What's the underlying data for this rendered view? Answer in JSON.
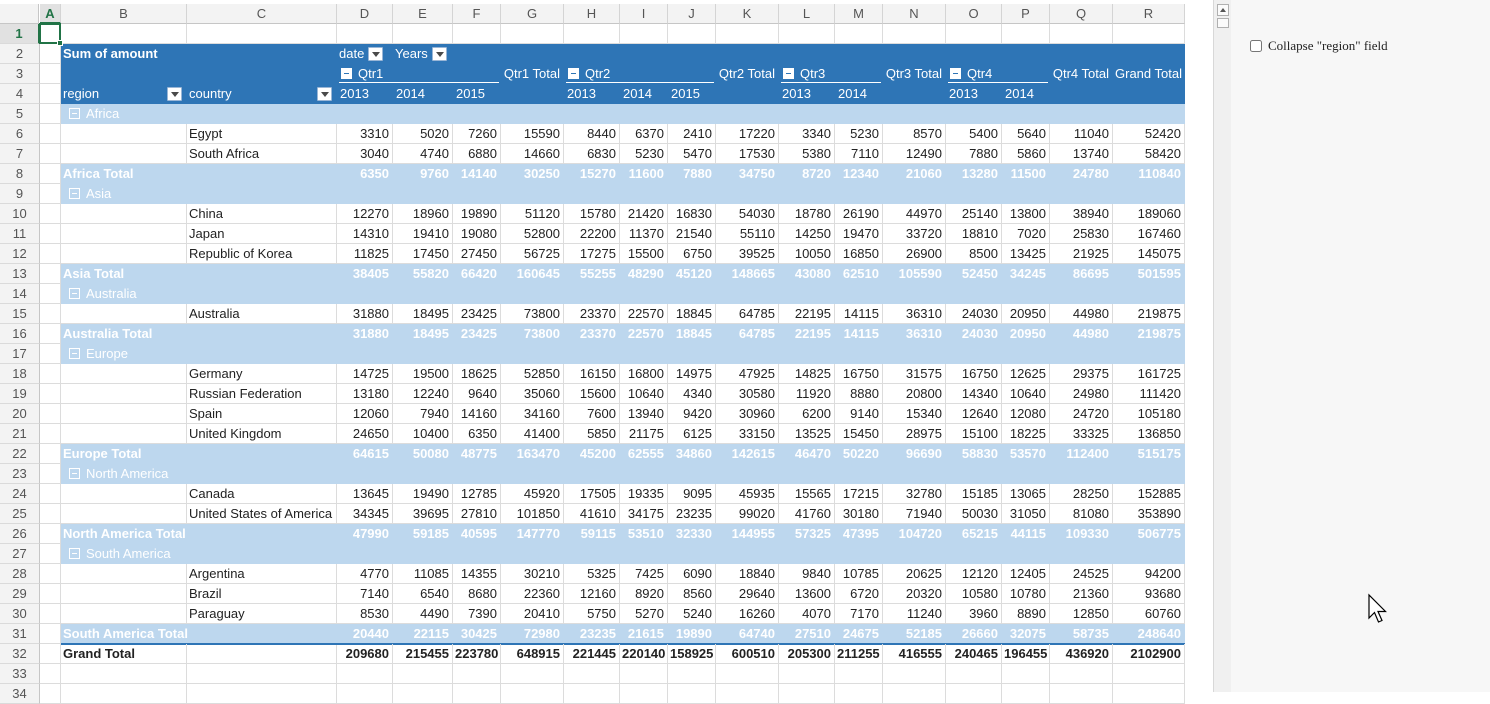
{
  "columns": [
    "A",
    "B",
    "C",
    "D",
    "E",
    "F",
    "G",
    "H",
    "I",
    "J",
    "K",
    "L",
    "M",
    "N",
    "O",
    "P",
    "Q",
    "R"
  ],
  "selected_column": "A",
  "selected_row": "1",
  "rows": [
    "1",
    "2",
    "3",
    "4",
    "5",
    "6",
    "7",
    "8",
    "9",
    "10",
    "11",
    "12",
    "13",
    "14",
    "15",
    "16",
    "17",
    "18",
    "19",
    "20",
    "21",
    "22",
    "23",
    "24",
    "25",
    "26",
    "27",
    "28",
    "29",
    "30",
    "31",
    "32",
    "33",
    "34"
  ],
  "pivot": {
    "data_field": "Sum of amount",
    "col_field_date": "date",
    "col_field_years": "Years",
    "row_field_region": "region",
    "row_field_country": "country",
    "quarters": [
      "Qtr1",
      "Qtr2",
      "Qtr3",
      "Qtr4"
    ],
    "quarter_totals": [
      "Qtr1 Total",
      "Qtr2 Total",
      "Qtr3 Total",
      "Qtr4 Total"
    ],
    "grand_total_label": "Grand Total",
    "years": {
      "D": "2013",
      "E": "2014",
      "F": "2015",
      "H": "2013",
      "I": "2014",
      "J": "2015",
      "L": "2013",
      "M": "2014",
      "O": "2013",
      "P": "2014"
    },
    "regions": [
      {
        "name": "Africa",
        "total_label": "Africa Total",
        "countries": [
          {
            "name": "Egypt",
            "values": [
              "3310",
              "5020",
              "7260",
              "15590",
              "8440",
              "6370",
              "2410",
              "17220",
              "3340",
              "5230",
              "8570",
              "5400",
              "5640",
              "11040",
              "52420"
            ]
          },
          {
            "name": "South Africa",
            "values": [
              "3040",
              "4740",
              "6880",
              "14660",
              "6830",
              "5230",
              "5470",
              "17530",
              "5380",
              "7110",
              "12490",
              "7880",
              "5860",
              "13740",
              "58420"
            ]
          }
        ],
        "totals": [
          "6350",
          "9760",
          "14140",
          "30250",
          "15270",
          "11600",
          "7880",
          "34750",
          "8720",
          "12340",
          "21060",
          "13280",
          "11500",
          "24780",
          "110840"
        ]
      },
      {
        "name": "Asia",
        "total_label": "Asia Total",
        "countries": [
          {
            "name": "China",
            "values": [
              "12270",
              "18960",
              "19890",
              "51120",
              "15780",
              "21420",
              "16830",
              "54030",
              "18780",
              "26190",
              "44970",
              "25140",
              "13800",
              "38940",
              "189060"
            ]
          },
          {
            "name": "Japan",
            "values": [
              "14310",
              "19410",
              "19080",
              "52800",
              "22200",
              "11370",
              "21540",
              "55110",
              "14250",
              "19470",
              "33720",
              "18810",
              "7020",
              "25830",
              "167460"
            ]
          },
          {
            "name": "Republic of Korea",
            "values": [
              "11825",
              "17450",
              "27450",
              "56725",
              "17275",
              "15500",
              "6750",
              "39525",
              "10050",
              "16850",
              "26900",
              "8500",
              "13425",
              "21925",
              "145075"
            ]
          }
        ],
        "totals": [
          "38405",
          "55820",
          "66420",
          "160645",
          "55255",
          "48290",
          "45120",
          "148665",
          "43080",
          "62510",
          "105590",
          "52450",
          "34245",
          "86695",
          "501595"
        ]
      },
      {
        "name": "Australia",
        "total_label": "Australia Total",
        "countries": [
          {
            "name": "Australia",
            "values": [
              "31880",
              "18495",
              "23425",
              "73800",
              "23370",
              "22570",
              "18845",
              "64785",
              "22195",
              "14115",
              "36310",
              "24030",
              "20950",
              "44980",
              "219875"
            ]
          }
        ],
        "totals": [
          "31880",
          "18495",
          "23425",
          "73800",
          "23370",
          "22570",
          "18845",
          "64785",
          "22195",
          "14115",
          "36310",
          "24030",
          "20950",
          "44980",
          "219875"
        ]
      },
      {
        "name": "Europe",
        "total_label": "Europe Total",
        "countries": [
          {
            "name": "Germany",
            "values": [
              "14725",
              "19500",
              "18625",
              "52850",
              "16150",
              "16800",
              "14975",
              "47925",
              "14825",
              "16750",
              "31575",
              "16750",
              "12625",
              "29375",
              "161725"
            ]
          },
          {
            "name": "Russian Federation",
            "values": [
              "13180",
              "12240",
              "9640",
              "35060",
              "15600",
              "10640",
              "4340",
              "30580",
              "11920",
              "8880",
              "20800",
              "14340",
              "10640",
              "24980",
              "111420"
            ]
          },
          {
            "name": "Spain",
            "values": [
              "12060",
              "7940",
              "14160",
              "34160",
              "7600",
              "13940",
              "9420",
              "30960",
              "6200",
              "9140",
              "15340",
              "12640",
              "12080",
              "24720",
              "105180"
            ]
          },
          {
            "name": "United Kingdom",
            "values": [
              "24650",
              "10400",
              "6350",
              "41400",
              "5850",
              "21175",
              "6125",
              "33150",
              "13525",
              "15450",
              "28975",
              "15100",
              "18225",
              "33325",
              "136850"
            ]
          }
        ],
        "totals": [
          "64615",
          "50080",
          "48775",
          "163470",
          "45200",
          "62555",
          "34860",
          "142615",
          "46470",
          "50220",
          "96690",
          "58830",
          "53570",
          "112400",
          "515175"
        ]
      },
      {
        "name": "North America",
        "total_label": "North America Total",
        "countries": [
          {
            "name": "Canada",
            "values": [
              "13645",
              "19490",
              "12785",
              "45920",
              "17505",
              "19335",
              "9095",
              "45935",
              "15565",
              "17215",
              "32780",
              "15185",
              "13065",
              "28250",
              "152885"
            ]
          },
          {
            "name": "United States of America",
            "values": [
              "34345",
              "39695",
              "27810",
              "101850",
              "41610",
              "34175",
              "23235",
              "99020",
              "41760",
              "30180",
              "71940",
              "50030",
              "31050",
              "81080",
              "353890"
            ]
          }
        ],
        "totals": [
          "47990",
          "59185",
          "40595",
          "147770",
          "59115",
          "53510",
          "32330",
          "144955",
          "57325",
          "47395",
          "104720",
          "65215",
          "44115",
          "109330",
          "506775"
        ]
      },
      {
        "name": "South America",
        "total_label": "South America Total",
        "countries": [
          {
            "name": "Argentina",
            "values": [
              "4770",
              "11085",
              "14355",
              "30210",
              "5325",
              "7425",
              "6090",
              "18840",
              "9840",
              "10785",
              "20625",
              "12120",
              "12405",
              "24525",
              "94200"
            ]
          },
          {
            "name": "Brazil",
            "values": [
              "7140",
              "6540",
              "8680",
              "22360",
              "12160",
              "8920",
              "8560",
              "29640",
              "13600",
              "6720",
              "20320",
              "10580",
              "10780",
              "21360",
              "93680"
            ]
          },
          {
            "name": "Paraguay",
            "values": [
              "8530",
              "4490",
              "7390",
              "20410",
              "5750",
              "5270",
              "5240",
              "16260",
              "4070",
              "7170",
              "11240",
              "3960",
              "8890",
              "12850",
              "60760"
            ]
          }
        ],
        "totals": [
          "20440",
          "22115",
          "30425",
          "72980",
          "23235",
          "21615",
          "19890",
          "64740",
          "27510",
          "24675",
          "52185",
          "26660",
          "32075",
          "58735",
          "248640"
        ]
      }
    ],
    "grand_totals": [
      "209680",
      "215455",
      "223780",
      "648915",
      "221445",
      "220140",
      "158925",
      "600510",
      "205300",
      "211255",
      "416555",
      "240465",
      "196455",
      "436920",
      "2102900"
    ]
  },
  "side_panel": {
    "checkbox_label": "Collapse \"region\" field",
    "checked": false
  }
}
